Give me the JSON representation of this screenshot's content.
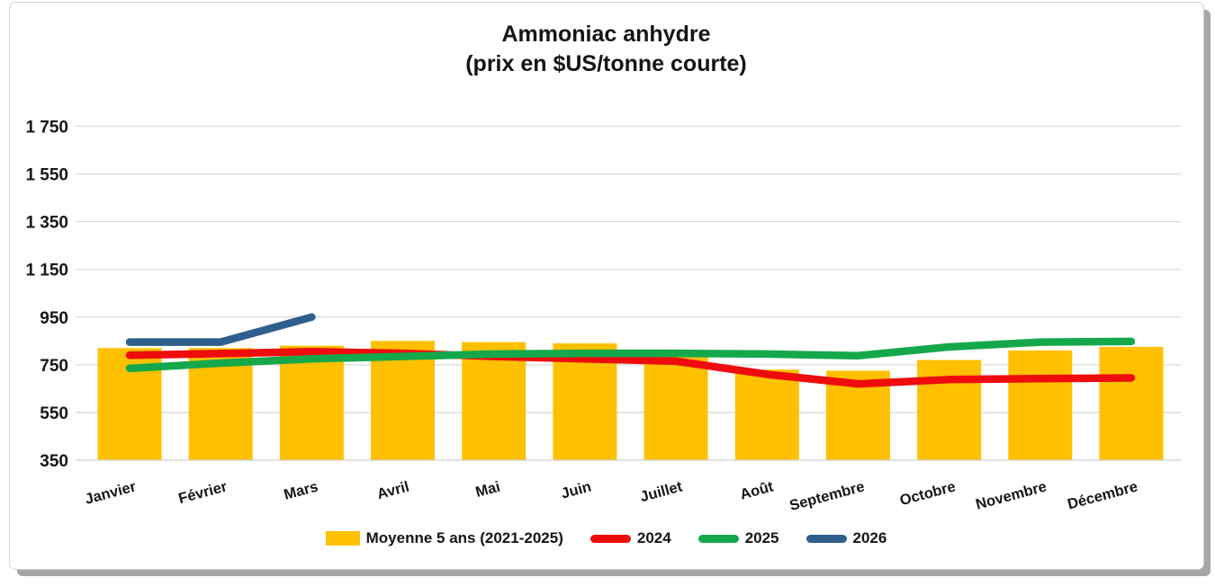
{
  "title": {
    "line1": "Ammoniac anhydre",
    "line2": "(prix en $US/tonne courte)"
  },
  "colors": {
    "bar": "#FFC000",
    "line_2024": "#EE0C0C",
    "line_2025": "#15A84B",
    "line_2026": "#2E5F8D",
    "grid": "#D9D9D9",
    "axis": "#D2D2D2",
    "text": "#161616"
  },
  "legend": {
    "items": [
      {
        "label": "Moyenne 5 ans (2021-2025)",
        "swatch": "bar",
        "color": "#FFC000"
      },
      {
        "label": "2024",
        "swatch": "line",
        "color": "#EE0C0C"
      },
      {
        "label": "2025",
        "swatch": "line",
        "color": "#15A84B"
      },
      {
        "label": "2026",
        "swatch": "line",
        "color": "#2E5F8D"
      }
    ]
  },
  "chart_data": {
    "type": "bar",
    "title": "Ammoniac anhydre (prix en $US/tonne courte)",
    "categories": [
      "Janvier",
      "Février",
      "Mars",
      "Avril",
      "Mai",
      "Juin",
      "Juillet",
      "Août",
      "Septembre",
      "Octobre",
      "Novembre",
      "Décembre"
    ],
    "series": [
      {
        "name": "Moyenne 5 ans (2021-2025)",
        "type": "bar",
        "color": "#FFC000",
        "values": [
          820,
          820,
          830,
          850,
          845,
          840,
          790,
          730,
          725,
          770,
          810,
          825
        ]
      },
      {
        "name": "2024",
        "type": "line",
        "color": "#EE0C0C",
        "values": [
          790,
          797,
          805,
          798,
          785,
          775,
          765,
          710,
          670,
          688,
          692,
          695
        ]
      },
      {
        "name": "2025",
        "type": "line",
        "color": "#15A84B",
        "values": [
          735,
          757,
          775,
          785,
          795,
          798,
          798,
          795,
          788,
          825,
          845,
          848
        ]
      },
      {
        "name": "2026",
        "type": "line",
        "color": "#2E5F8D",
        "values": [
          845,
          845,
          950,
          null,
          null,
          null,
          null,
          null,
          null,
          null,
          null,
          null
        ]
      }
    ],
    "xlabel": "",
    "ylabel": "",
    "ylim": [
      350,
      1750
    ],
    "yticks": [
      350,
      550,
      750,
      950,
      1150,
      1350,
      1550,
      1750
    ],
    "ytick_format": "space-thousands",
    "grid": true,
    "legend_position": "bottom"
  }
}
